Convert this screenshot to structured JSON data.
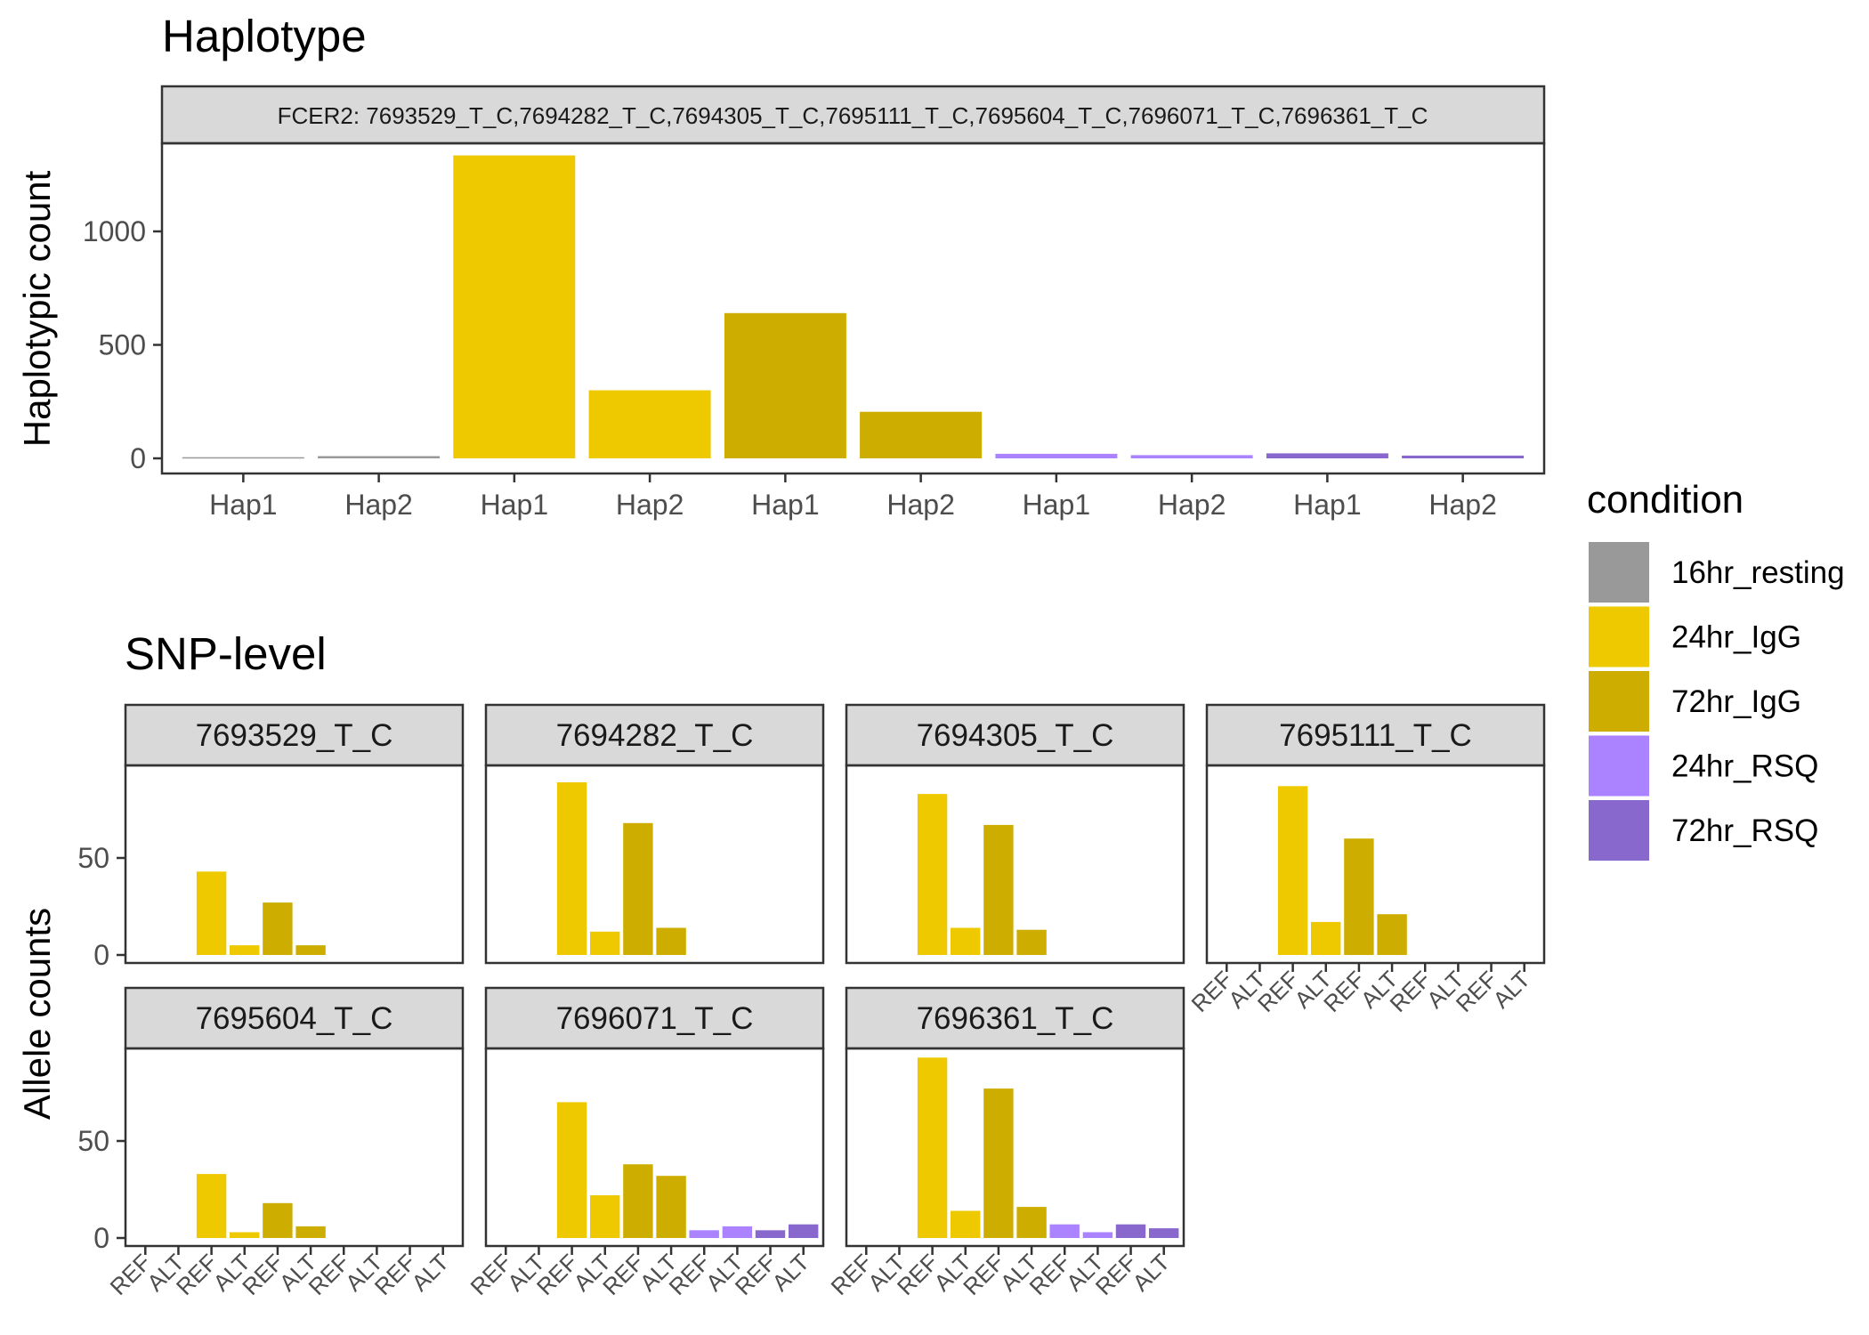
{
  "colors": {
    "16hr_resting": "#999999",
    "24hr_IgG": "#EEC900",
    "72hr_IgG": "#CDAD00",
    "24hr_RSQ": "#AB82FF",
    "72hr_RSQ": "#8968CD"
  },
  "chart_data": [
    {
      "type": "bar",
      "title": "Haplotype",
      "strip": "FCER2: 7693529_T_C,7694282_T_C,7694305_T_C,7695111_T_C,7695604_T_C,7696071_T_C,7696361_T_C",
      "ylabel": "Haplotypic count",
      "xlabel": "",
      "ylim": [
        0,
        1400
      ],
      "yticks": [
        0,
        500,
        1000
      ],
      "grid": false,
      "categories": [
        "Hap1",
        "Hap2",
        "Hap1",
        "Hap2",
        "Hap1",
        "Hap2",
        "Hap1",
        "Hap2",
        "Hap1",
        "Hap2"
      ],
      "conditions": [
        "16hr_resting",
        "16hr_resting",
        "24hr_IgG",
        "24hr_IgG",
        "72hr_IgG",
        "72hr_IgG",
        "24hr_RSQ",
        "24hr_RSQ",
        "72hr_RSQ",
        "72hr_RSQ"
      ],
      "values": [
        5,
        10,
        1335,
        300,
        640,
        205,
        20,
        14,
        22,
        12
      ]
    },
    {
      "type": "bar",
      "title": "SNP-level",
      "ylabel": "Allele counts",
      "xlabel": "",
      "ylim": [
        0,
        100
      ],
      "yticks": [
        0,
        50
      ],
      "grid": false,
      "categories": [
        "REF",
        "ALT",
        "REF",
        "ALT",
        "REF",
        "ALT",
        "REF",
        "ALT",
        "REF",
        "ALT"
      ],
      "conditions": [
        "16hr_resting",
        "16hr_resting",
        "24hr_IgG",
        "24hr_IgG",
        "72hr_IgG",
        "72hr_IgG",
        "24hr_RSQ",
        "24hr_RSQ",
        "72hr_RSQ",
        "72hr_RSQ"
      ],
      "facets": [
        {
          "name": "7693529_T_C",
          "values": [
            0,
            0,
            43,
            5,
            27,
            5,
            0,
            0,
            0,
            0
          ]
        },
        {
          "name": "7694282_T_C",
          "values": [
            0,
            0,
            89,
            12,
            68,
            14,
            0,
            0,
            0,
            0
          ]
        },
        {
          "name": "7694305_T_C",
          "values": [
            0,
            0,
            83,
            14,
            67,
            13,
            0,
            0,
            0,
            0
          ]
        },
        {
          "name": "7695111_T_C",
          "values": [
            0,
            0,
            87,
            17,
            60,
            21,
            0,
            0,
            0,
            0
          ]
        },
        {
          "name": "7695604_T_C",
          "values": [
            0,
            0,
            33,
            3,
            18,
            6,
            0,
            0,
            0,
            0
          ]
        },
        {
          "name": "7696071_T_C",
          "values": [
            0,
            0,
            70,
            22,
            38,
            32,
            4,
            6,
            4,
            7
          ]
        },
        {
          "name": "7696361_T_C",
          "values": [
            0,
            0,
            93,
            14,
            77,
            16,
            7,
            3,
            7,
            5
          ]
        }
      ]
    }
  ],
  "legend": {
    "title": "condition",
    "placement": "right",
    "items": [
      "16hr_resting",
      "24hr_IgG",
      "72hr_IgG",
      "24hr_RSQ",
      "72hr_RSQ"
    ]
  }
}
